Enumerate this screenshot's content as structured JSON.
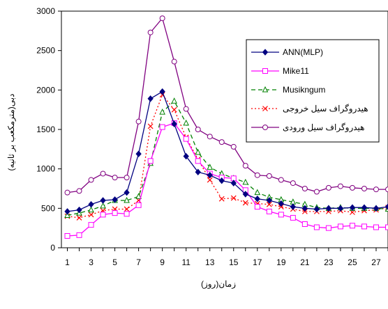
{
  "chart_data": {
    "type": "line",
    "xlabel": "زمان(روز)",
    "ylabel": "دبی(مترمکعب بر ثانیه)",
    "ylim": [
      0,
      3000
    ],
    "yticks": [
      0,
      500,
      1000,
      1500,
      2000,
      2500,
      3000
    ],
    "xlim": [
      0.5,
      28
    ],
    "xticks": [
      1,
      3,
      5,
      7,
      9,
      11,
      13,
      15,
      17,
      19,
      21,
      23,
      25,
      27
    ],
    "grid": false,
    "legend_position": "top-right",
    "x": [
      1,
      2,
      3,
      4,
      5,
      6,
      7,
      8,
      9,
      10,
      11,
      12,
      13,
      14,
      15,
      16,
      17,
      18,
      19,
      20,
      21,
      22,
      23,
      24,
      25,
      26,
      27,
      28
    ],
    "series": [
      {
        "name": "ANN(MLP)",
        "color": "#000080",
        "dash": "solid",
        "marker": "diamond-filled",
        "values": [
          460,
          480,
          550,
          600,
          610,
          700,
          1190,
          1890,
          1980,
          1570,
          1160,
          960,
          920,
          850,
          820,
          680,
          620,
          600,
          560,
          520,
          500,
          490,
          500,
          500,
          510,
          510,
          500,
          520
        ]
      },
      {
        "name": "Mike11",
        "color": "#ff00ff",
        "dash": "solid",
        "marker": "square-open",
        "values": [
          150,
          160,
          290,
          420,
          440,
          430,
          540,
          1100,
          1530,
          1580,
          1380,
          1100,
          940,
          890,
          880,
          730,
          520,
          460,
          420,
          380,
          300,
          260,
          250,
          270,
          280,
          270,
          260,
          260
        ]
      },
      {
        "name": "Musikngum",
        "color": "#008000",
        "dash": "dash",
        "marker": "triangle-open",
        "values": [
          410,
          440,
          480,
          530,
          600,
          600,
          650,
          1070,
          1720,
          1860,
          1580,
          1210,
          1020,
          940,
          880,
          830,
          700,
          640,
          610,
          580,
          550,
          510,
          500,
          510,
          500,
          500,
          500,
          490
        ]
      },
      {
        "name": "هیدروگراف سیل خروجی",
        "color": "#ff0000",
        "dash": "dot",
        "marker": "x",
        "values": [
          400,
          380,
          420,
          470,
          490,
          490,
          600,
          1540,
          1940,
          1750,
          1400,
          1120,
          860,
          620,
          630,
          570,
          560,
          550,
          520,
          490,
          460,
          460,
          460,
          470,
          450,
          470,
          480,
          510
        ]
      },
      {
        "name": "هیدروگراف سیل ورودی",
        "color": "#800080",
        "dash": "solid",
        "marker": "circle-open",
        "values": [
          700,
          720,
          860,
          940,
          890,
          890,
          1600,
          2730,
          2910,
          2360,
          1760,
          1500,
          1410,
          1340,
          1280,
          1040,
          920,
          910,
          860,
          820,
          750,
          710,
          760,
          780,
          760,
          750,
          740,
          740
        ]
      }
    ]
  }
}
